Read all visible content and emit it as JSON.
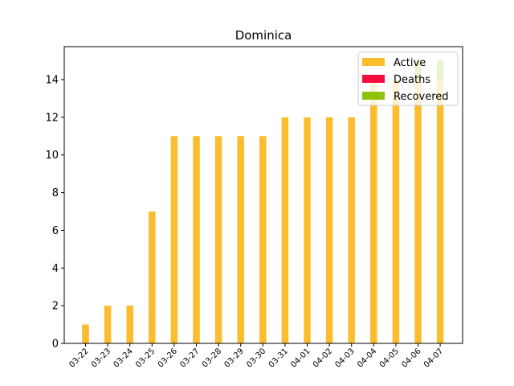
{
  "chart_data": {
    "type": "bar",
    "title": "Dominica",
    "xlabel": "",
    "ylabel": "",
    "ylim": [
      0,
      15.75
    ],
    "yticks": [
      0,
      2,
      4,
      6,
      8,
      10,
      12,
      14
    ],
    "categories": [
      "03-22",
      "03-23",
      "03-24",
      "03-25",
      "03-26",
      "03-27",
      "03-28",
      "03-29",
      "03-30",
      "03-31",
      "04-01",
      "04-02",
      "04-03",
      "04-04",
      "04-05",
      "04-06",
      "04-07"
    ],
    "stacked": true,
    "legend_position": "top-right",
    "grid": false,
    "series": [
      {
        "name": "Active",
        "color": "#fbbc2d",
        "values": [
          1,
          2,
          2,
          7,
          11,
          11,
          11,
          11,
          11,
          12,
          12,
          12,
          12,
          14,
          14,
          14,
          14
        ]
      },
      {
        "name": "Deaths",
        "color": "#f20d3c",
        "values": [
          0,
          0,
          0,
          0,
          0,
          0,
          0,
          0,
          0,
          0,
          0,
          0,
          0,
          0,
          0,
          0,
          0
        ]
      },
      {
        "name": "Recovered",
        "color": "#8fc20d",
        "values": [
          0,
          0,
          0,
          0,
          0,
          0,
          0,
          0,
          0,
          0,
          0,
          0,
          0,
          0,
          0,
          1,
          1
        ]
      }
    ]
  }
}
